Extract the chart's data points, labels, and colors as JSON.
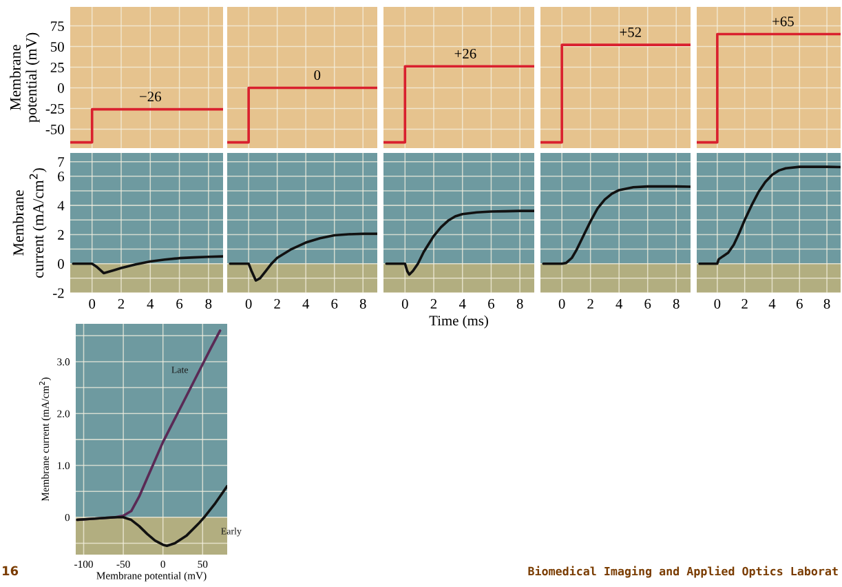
{
  "chart_data": [
    {
      "type": "step",
      "ylabel": "Membrane\npotential (mV)",
      "xlim": [
        -1.5,
        9
      ],
      "ylim": [
        -73,
        98
      ],
      "xticks": [
        0,
        2,
        4,
        6,
        8
      ],
      "yticks": [
        -50,
        -25,
        0,
        25,
        50,
        75
      ],
      "grid": true,
      "tick_labels": "y",
      "bands": [
        {
          "axis": "y",
          "from": -73,
          "to": 98,
          "color": "#e6c38e"
        }
      ],
      "series": [
        {
          "color": "#d9202e",
          "x": [
            -1.5,
            0,
            9
          ],
          "values": [
            -66,
            -26,
            -26
          ]
        }
      ],
      "annotations": [
        {
          "text": "−26",
          "x": 4,
          "y": -26
        }
      ]
    },
    {
      "type": "step",
      "xlim": [
        -1.5,
        9
      ],
      "ylim": [
        -73,
        98
      ],
      "xticks": [
        0,
        2,
        4,
        6,
        8
      ],
      "yticks": [
        -50,
        -25,
        0,
        25,
        50,
        75
      ],
      "grid": true,
      "tick_labels": false,
      "bands": [
        {
          "axis": "y",
          "from": -73,
          "to": 98,
          "color": "#e6c38e"
        }
      ],
      "series": [
        {
          "color": "#d9202e",
          "x": [
            -1.5,
            0,
            9
          ],
          "values": [
            -66,
            0,
            0
          ]
        }
      ],
      "annotations": [
        {
          "text": "0",
          "x": 4.8,
          "y": 0
        }
      ]
    },
    {
      "type": "step",
      "xlim": [
        -1.5,
        9
      ],
      "ylim": [
        -73,
        98
      ],
      "xticks": [
        0,
        2,
        4,
        6,
        8
      ],
      "yticks": [
        -50,
        -25,
        0,
        25,
        50,
        75
      ],
      "grid": true,
      "tick_labels": false,
      "bands": [
        {
          "axis": "y",
          "from": -73,
          "to": 98,
          "color": "#e6c38e"
        }
      ],
      "series": [
        {
          "color": "#d9202e",
          "x": [
            -1.5,
            0,
            9
          ],
          "values": [
            -66,
            26,
            26
          ]
        }
      ],
      "annotations": [
        {
          "text": "+26",
          "x": 4.2,
          "y": 26
        }
      ]
    },
    {
      "type": "step",
      "xlim": [
        -1.5,
        9
      ],
      "ylim": [
        -73,
        98
      ],
      "xticks": [
        0,
        2,
        4,
        6,
        8
      ],
      "yticks": [
        -50,
        -25,
        0,
        25,
        50,
        75
      ],
      "grid": true,
      "tick_labels": false,
      "bands": [
        {
          "axis": "y",
          "from": -73,
          "to": 98,
          "color": "#e6c38e"
        }
      ],
      "series": [
        {
          "color": "#d9202e",
          "x": [
            -1.5,
            0,
            9
          ],
          "values": [
            -66,
            52,
            52
          ]
        }
      ],
      "annotations": [
        {
          "text": "+52",
          "x": 4.8,
          "y": 52
        }
      ]
    },
    {
      "type": "step",
      "xlim": [
        -1.5,
        9
      ],
      "ylim": [
        -73,
        98
      ],
      "xticks": [
        0,
        2,
        4,
        6,
        8
      ],
      "yticks": [
        -50,
        -25,
        0,
        25,
        50,
        75
      ],
      "grid": true,
      "tick_labels": false,
      "bands": [
        {
          "axis": "y",
          "from": -73,
          "to": 98,
          "color": "#e6c38e"
        }
      ],
      "series": [
        {
          "color": "#d9202e",
          "x": [
            -1.5,
            0,
            9
          ],
          "values": [
            -66,
            65,
            65
          ]
        }
      ],
      "annotations": [
        {
          "text": "+65",
          "x": 4.8,
          "y": 65
        }
      ]
    },
    {
      "type": "line",
      "ylabel": "Membrane\ncurrent (mA/cm$^{2}$)",
      "xlim": [
        -1.5,
        9
      ],
      "ylim": [
        -2,
        7.6
      ],
      "xticks": [
        0,
        2,
        4,
        6,
        8
      ],
      "yticks": [
        -2,
        {
          "value": -1,
          "label": null
        },
        0,
        {
          "value": 1,
          "label": null
        },
        2,
        {
          "value": 3,
          "label": null
        },
        4,
        {
          "value": 5,
          "label": null
        },
        6,
        7
      ],
      "grid": true,
      "bands": [
        {
          "axis": "y",
          "from": 0,
          "to": 7.6,
          "color": "#6e9aa0"
        },
        {
          "axis": "y",
          "from": -2,
          "to": 0,
          "color": "#b2ae80"
        }
      ],
      "series": [
        {
          "color": "#111111",
          "x": [
            -1.3,
            0,
            0.3,
            0.8,
            1.5,
            2,
            3,
            4,
            5,
            6,
            7,
            8,
            9
          ],
          "values": [
            0,
            0,
            -0.2,
            -0.65,
            -0.45,
            -0.3,
            -0.05,
            0.15,
            0.28,
            0.38,
            0.43,
            0.47,
            0.5
          ]
        }
      ]
    },
    {
      "type": "line",
      "xlim": [
        -1.5,
        9
      ],
      "ylim": [
        -2,
        7.6
      ],
      "xticks": [
        0,
        2,
        4,
        6,
        8
      ],
      "yticks": [
        -2,
        {
          "value": -1,
          "label": null
        },
        0,
        {
          "value": 1,
          "label": null
        },
        2,
        {
          "value": 3,
          "label": null
        },
        4,
        {
          "value": 5,
          "label": null
        },
        6,
        7
      ],
      "grid": true,
      "tick_labels": "x",
      "bands": [
        {
          "axis": "y",
          "from": 0,
          "to": 7.6,
          "color": "#6e9aa0"
        },
        {
          "axis": "y",
          "from": -2,
          "to": 0,
          "color": "#b2ae80"
        }
      ],
      "series": [
        {
          "color": "#111111",
          "x": [
            -1.3,
            0,
            0.2,
            0.5,
            0.8,
            1.2,
            1.6,
            2,
            3,
            4,
            5,
            6,
            7,
            8,
            9
          ],
          "values": [
            0,
            0,
            -0.5,
            -1.15,
            -1.0,
            -0.5,
            0,
            0.4,
            1.0,
            1.45,
            1.75,
            1.95,
            2.02,
            2.05,
            2.05
          ]
        }
      ]
    },
    {
      "type": "line",
      "xlabel": "Time (ms)",
      "xlim": [
        -1.5,
        9
      ],
      "ylim": [
        -2,
        7.6
      ],
      "xticks": [
        0,
        2,
        4,
        6,
        8
      ],
      "yticks": [
        -2,
        {
          "value": -1,
          "label": null
        },
        0,
        {
          "value": 1,
          "label": null
        },
        2,
        {
          "value": 3,
          "label": null
        },
        4,
        {
          "value": 5,
          "label": null
        },
        6,
        7
      ],
      "grid": true,
      "tick_labels": "x",
      "bands": [
        {
          "axis": "y",
          "from": 0,
          "to": 7.6,
          "color": "#6e9aa0"
        },
        {
          "axis": "y",
          "from": -2,
          "to": 0,
          "color": "#b2ae80"
        }
      ],
      "series": [
        {
          "color": "#111111",
          "x": [
            -1.3,
            0,
            0.15,
            0.3,
            0.55,
            0.9,
            1.3,
            2,
            2.5,
            3,
            3.5,
            4,
            5,
            6,
            7,
            8,
            9
          ],
          "values": [
            0,
            0,
            -0.5,
            -0.75,
            -0.5,
            0,
            0.8,
            1.9,
            2.5,
            2.95,
            3.25,
            3.4,
            3.52,
            3.58,
            3.6,
            3.62,
            3.62
          ]
        }
      ]
    },
    {
      "type": "line",
      "xlim": [
        -1.5,
        9
      ],
      "ylim": [
        -2,
        7.6
      ],
      "xticks": [
        0,
        2,
        4,
        6,
        8
      ],
      "yticks": [
        -2,
        {
          "value": -1,
          "label": null
        },
        0,
        {
          "value": 1,
          "label": null
        },
        2,
        {
          "value": 3,
          "label": null
        },
        4,
        {
          "value": 5,
          "label": null
        },
        6,
        7
      ],
      "grid": true,
      "tick_labels": "x",
      "bands": [
        {
          "axis": "y",
          "from": 0,
          "to": 7.6,
          "color": "#6e9aa0"
        },
        {
          "axis": "y",
          "from": -2,
          "to": 0,
          "color": "#b2ae80"
        }
      ],
      "series": [
        {
          "color": "#111111",
          "x": [
            -1.3,
            0,
            0.3,
            0.7,
            1,
            1.5,
            2,
            2.5,
            3,
            3.5,
            4,
            5,
            6,
            7,
            8,
            9
          ],
          "values": [
            0,
            0,
            0.05,
            0.4,
            0.9,
            1.9,
            2.9,
            3.8,
            4.4,
            4.8,
            5.05,
            5.25,
            5.3,
            5.3,
            5.3,
            5.28
          ]
        }
      ]
    },
    {
      "type": "line",
      "xlim": [
        -1.5,
        9
      ],
      "ylim": [
        -2,
        7.6
      ],
      "xticks": [
        0,
        2,
        4,
        6,
        8
      ],
      "yticks": [
        -2,
        {
          "value": -1,
          "label": null
        },
        0,
        {
          "value": 1,
          "label": null
        },
        2,
        {
          "value": 3,
          "label": null
        },
        4,
        {
          "value": 5,
          "label": null
        },
        6,
        7
      ],
      "grid": true,
      "tick_labels": "x",
      "bands": [
        {
          "axis": "y",
          "from": 0,
          "to": 7.6,
          "color": "#6e9aa0"
        },
        {
          "axis": "y",
          "from": -2,
          "to": 0,
          "color": "#b2ae80"
        }
      ],
      "series": [
        {
          "color": "#111111",
          "x": [
            -1.3,
            0,
            0.1,
            0.4,
            0.8,
            1.2,
            1.6,
            2,
            2.5,
            3,
            3.5,
            4,
            4.5,
            5,
            6,
            7,
            8,
            9
          ],
          "values": [
            0,
            0,
            0.3,
            0.5,
            0.75,
            1.3,
            2.1,
            3.0,
            4.0,
            4.9,
            5.6,
            6.1,
            6.4,
            6.55,
            6.65,
            6.65,
            6.65,
            6.63
          ]
        }
      ]
    },
    {
      "type": "line",
      "xlabel": "Membrane potential (mV)",
      "ylabel": "Membrane current (mA/cm$^{2}$)",
      "xlim": [
        -110,
        81
      ],
      "ylim": [
        -0.72,
        3.73
      ],
      "xticks": [
        -100,
        -50,
        0,
        50
      ],
      "yticks": [
        {
          "value": -0.5,
          "label": null
        },
        0,
        {
          "value": 0.5,
          "label": null
        },
        {
          "value": 1,
          "label": "1.0"
        },
        {
          "value": 1.5,
          "label": null
        },
        {
          "value": 2,
          "label": "2.0"
        },
        {
          "value": 2.5,
          "label": null
        },
        {
          "value": 3,
          "label": "3.0"
        },
        {
          "value": 3.5,
          "label": null
        }
      ],
      "grid": true,
      "bands": [
        {
          "axis": "y",
          "from": 0,
          "to": 3.73,
          "color": "#6e9aa0"
        },
        {
          "axis": "y",
          "from": -0.72,
          "to": 0,
          "color": "#b2ae80"
        }
      ],
      "series": [
        {
          "name": "Late",
          "color": "#5a2a55",
          "x": [
            -108,
            -80,
            -60,
            -50,
            -40,
            -30,
            -20,
            -10,
            0,
            20,
            40,
            60,
            72
          ],
          "values": [
            -0.05,
            -0.02,
            0,
            0.03,
            0.12,
            0.4,
            0.75,
            1.1,
            1.45,
            2.05,
            2.65,
            3.25,
            3.6
          ]
        },
        {
          "name": "Early",
          "color": "#111111",
          "x": [
            -108,
            -80,
            -60,
            -50,
            -40,
            -30,
            -20,
            -10,
            0,
            5,
            15,
            30,
            45,
            52,
            65,
            81
          ],
          "values": [
            -0.05,
            -0.02,
            0,
            0,
            -0.05,
            -0.17,
            -0.32,
            -0.45,
            -0.53,
            -0.55,
            -0.5,
            -0.35,
            -0.12,
            0,
            0.25,
            0.6
          ]
        }
      ],
      "annotations": [
        "16",
        "Biomedical Imaging and Applied Optics Laborat"
      ]
    }
  ]
}
